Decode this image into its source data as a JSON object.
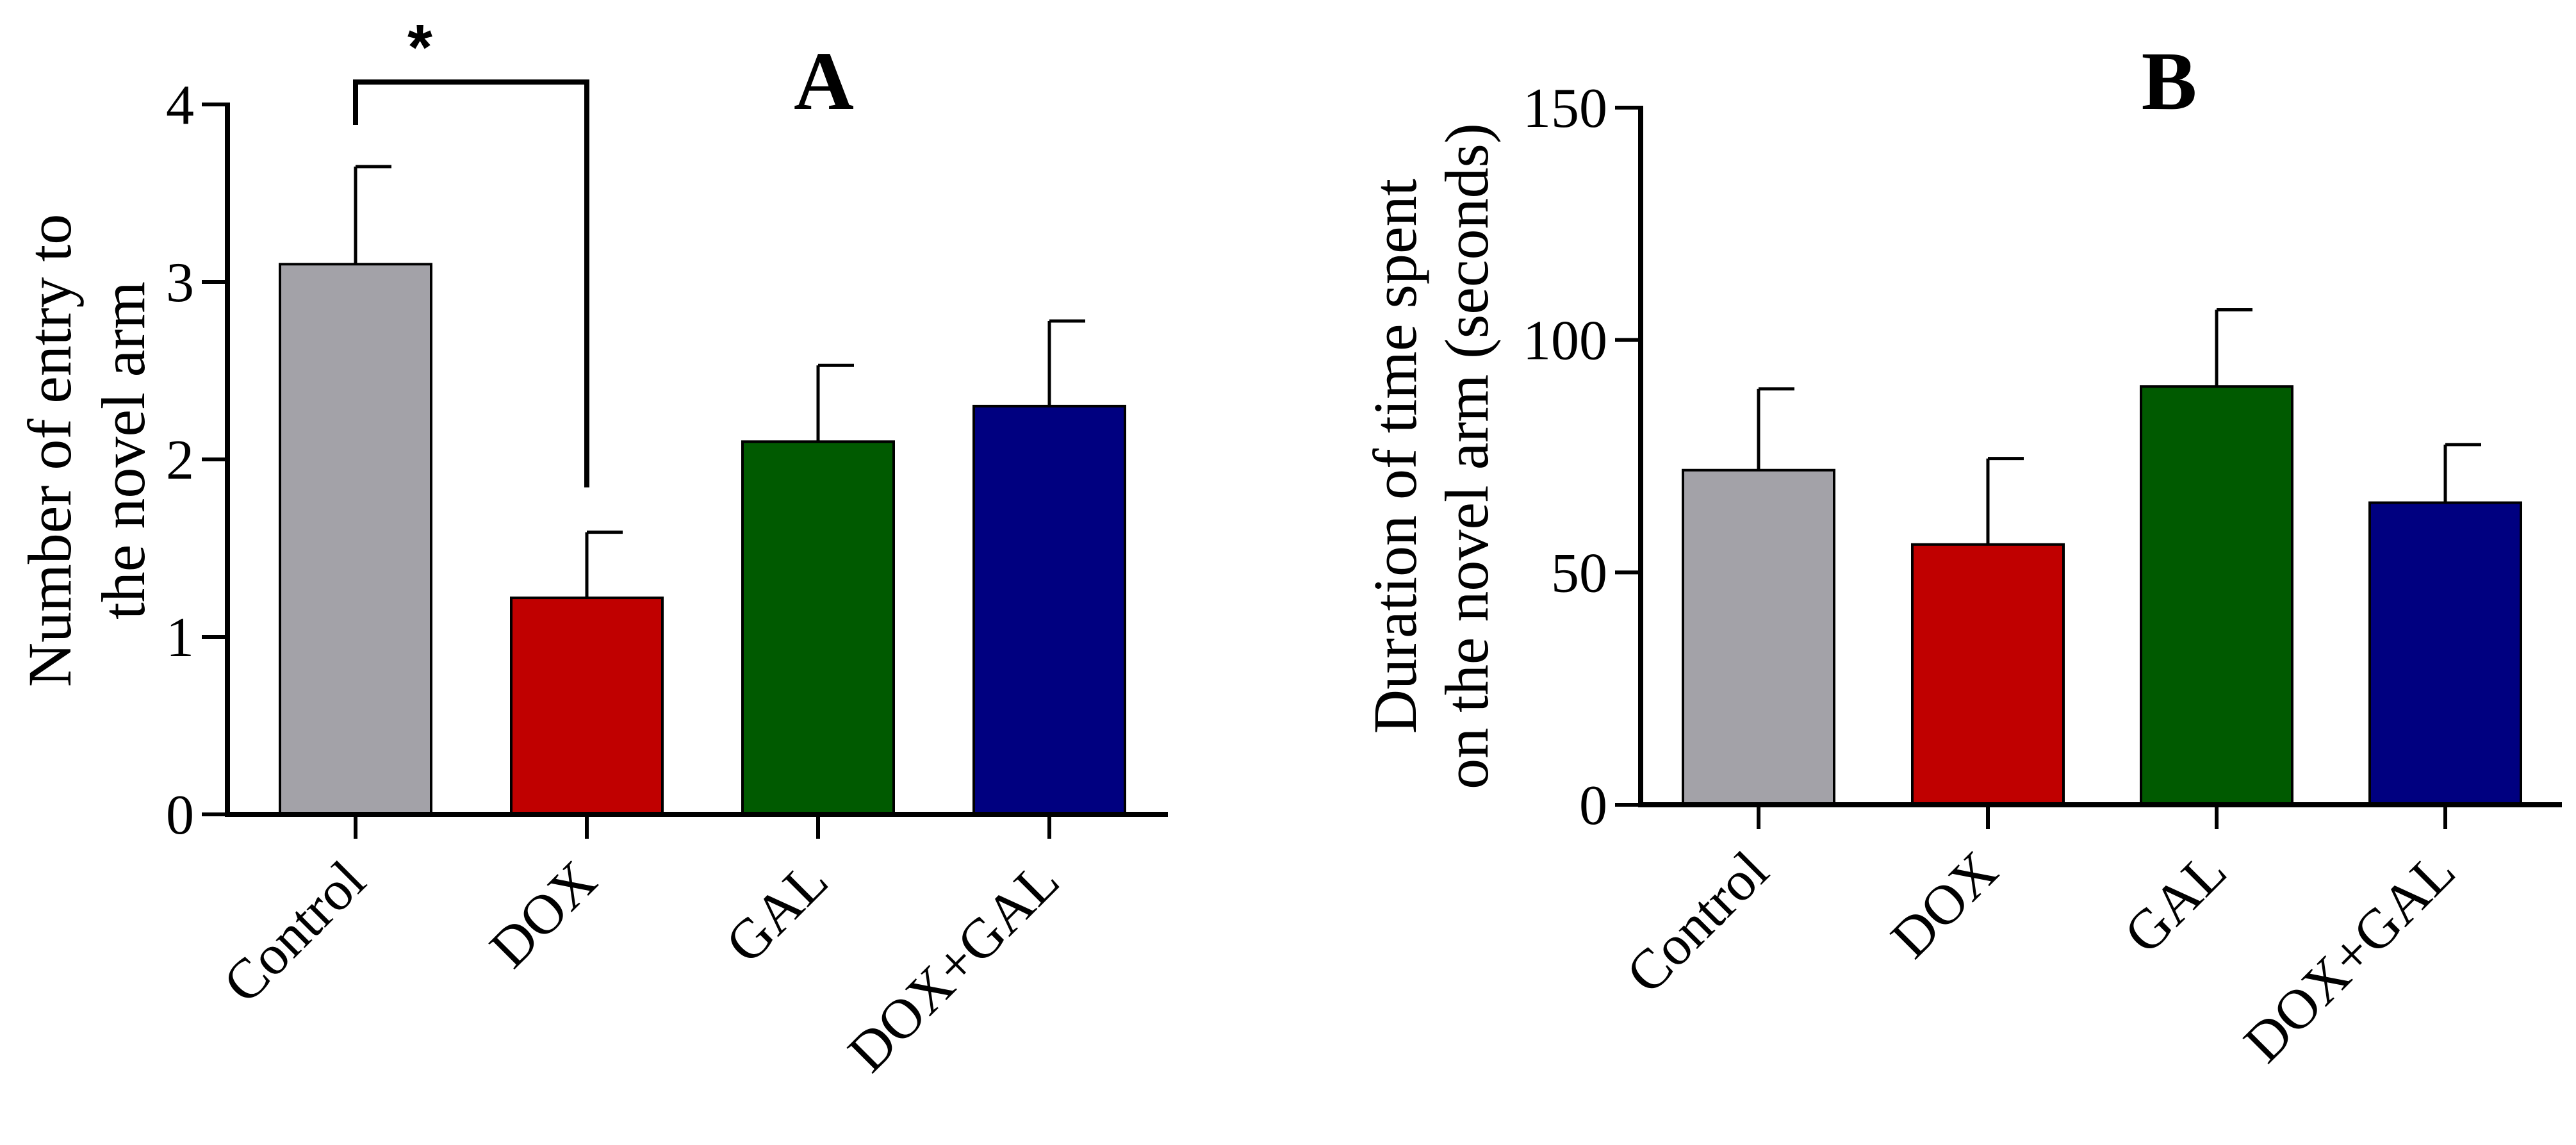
{
  "colors": {
    "Control": "#a3a2a8",
    "DOX": "#c00000",
    "GAL": "#005a00",
    "DOX+GAL": "#000080",
    "axis": "#000000"
  },
  "chart_data": [
    {
      "panel": "A",
      "type": "bar",
      "title": "A",
      "xlabel": "",
      "ylabel_lines": [
        "Number of entry to",
        "the novel arm"
      ],
      "categories": [
        "Control",
        "DOX",
        "GAL",
        "DOX+GAL"
      ],
      "values": [
        3.1,
        1.22,
        2.1,
        2.3
      ],
      "errors": [
        0.55,
        0.37,
        0.43,
        0.48
      ],
      "ylim": [
        0,
        4
      ],
      "yticks": [
        0,
        1,
        2,
        3,
        4
      ],
      "significance": [
        {
          "from": "Control",
          "to": "DOX",
          "label": "*"
        }
      ]
    },
    {
      "panel": "B",
      "type": "bar",
      "title": "B",
      "xlabel": "",
      "ylabel_lines": [
        "Duration of time spent",
        "on the novel arm (seconds)"
      ],
      "categories": [
        "Control",
        "DOX",
        "GAL",
        "DOX+GAL"
      ],
      "values": [
        72,
        56,
        90,
        65
      ],
      "errors": [
        17.5,
        18.5,
        16.5,
        12.5
      ],
      "ylim": [
        0,
        150
      ],
      "yticks": [
        0,
        50,
        100,
        150
      ],
      "significance": []
    }
  ]
}
